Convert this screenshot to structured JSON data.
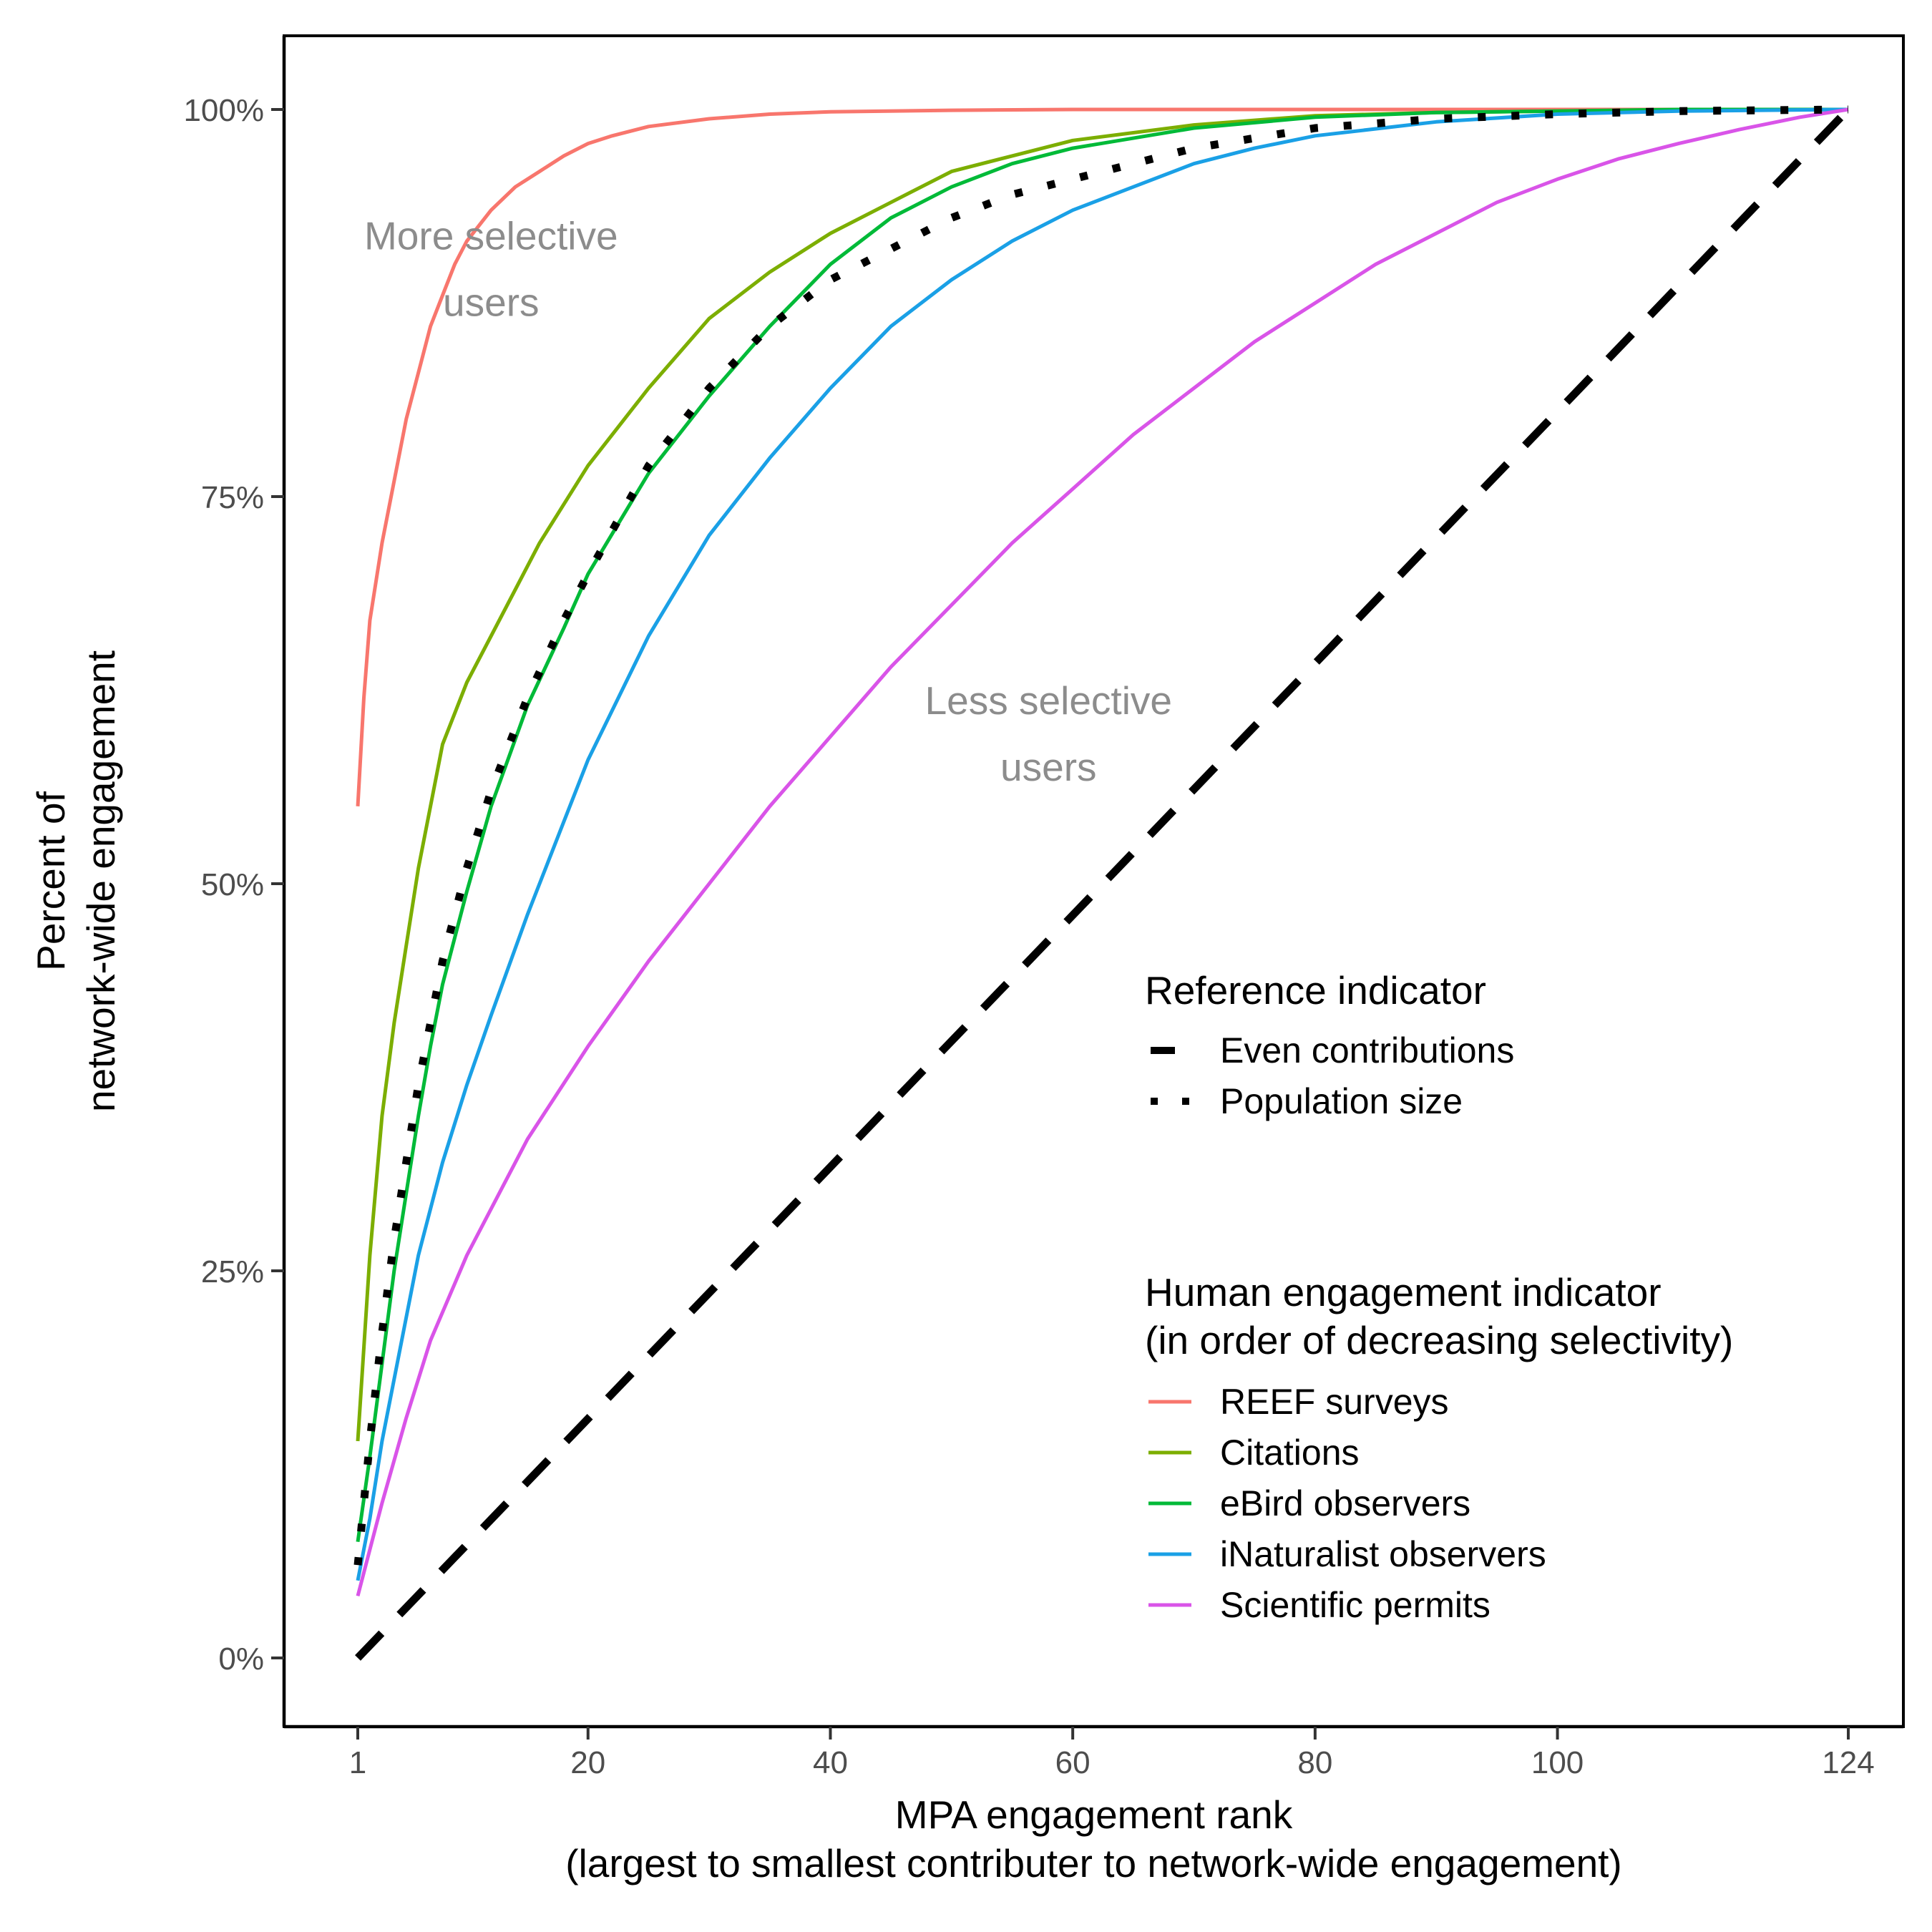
{
  "chart_data": {
    "type": "line",
    "xlabel": [
      "MPA engagement rank",
      "(largest to smallest contributer to network-wide engagement)"
    ],
    "ylabel": [
      "Percent of",
      "network-wide engagement"
    ],
    "xlim": [
      -9,
      133
    ],
    "ylim": [
      -4,
      105
    ],
    "x_ticks": [
      1,
      20,
      40,
      60,
      80,
      100,
      124
    ],
    "y_ticks": [
      0,
      25,
      50,
      75,
      100
    ],
    "y_tick_labels": [
      "0%",
      "25%",
      "50%",
      "75%",
      "100%"
    ],
    "grid": false,
    "legend_position": "bottom-right",
    "annotations": [
      {
        "lines": [
          "More selective",
          "users"
        ],
        "x": 12,
        "y": 90.5
      },
      {
        "lines": [
          "Less selective",
          "users"
        ],
        "x": 58,
        "y": 60.5
      }
    ],
    "legends": [
      {
        "title": [
          "Reference indicator"
        ],
        "entries": [
          "Even contributions",
          "Population size"
        ]
      },
      {
        "title": [
          "Human engagement indicator",
          "(in order of decreasing selectivity)"
        ],
        "entries": [
          "REEF surveys",
          "Citations",
          "eBird observers",
          "iNaturalist observers",
          "Scientific permits"
        ]
      }
    ],
    "series": [
      {
        "name": "Even contributions",
        "style": "dashed",
        "color": "#000000",
        "x": [
          1,
          124
        ],
        "y": [
          0,
          100
        ]
      },
      {
        "name": "Population size",
        "style": "dotted",
        "color": "#000000",
        "x": [
          1,
          2,
          3,
          4,
          5,
          6,
          7,
          8,
          10,
          12,
          15,
          18,
          20,
          25,
          30,
          35,
          40,
          45,
          50,
          55,
          60,
          70,
          80,
          90,
          100,
          110,
          124
        ],
        "y": [
          6,
          14,
          21,
          27,
          32,
          37,
          41,
          45,
          51,
          56,
          62,
          67,
          70,
          77,
          82,
          86,
          89,
          91,
          93,
          94.5,
          95.5,
          97.5,
          98.8,
          99.4,
          99.7,
          99.9,
          100
        ]
      },
      {
        "name": "REEF surveys",
        "style": "solid",
        "color": "#F8766D",
        "x": [
          1,
          1.5,
          2,
          3,
          4,
          5,
          6,
          7,
          8,
          9,
          10,
          12,
          14,
          16,
          18,
          20,
          22,
          25,
          30,
          35,
          40,
          50,
          60,
          80,
          100,
          124
        ],
        "y": [
          55,
          62,
          67,
          72,
          76,
          80,
          83,
          86,
          88,
          90,
          91.5,
          93.5,
          95,
          96,
          97,
          97.8,
          98.3,
          98.9,
          99.4,
          99.7,
          99.85,
          99.95,
          100,
          100,
          100,
          100
        ]
      },
      {
        "name": "Citations",
        "style": "solid",
        "color": "#7CAE00",
        "x": [
          1,
          2,
          3,
          4,
          5,
          6,
          7,
          8,
          10,
          12,
          14,
          16,
          18,
          20,
          25,
          30,
          35,
          40,
          45,
          50,
          55,
          60,
          70,
          80,
          90,
          100,
          124
        ],
        "y": [
          14,
          26,
          35,
          41,
          46,
          51,
          55,
          59,
          63,
          66,
          69,
          72,
          74.5,
          77,
          82,
          86.5,
          89.5,
          92,
          94,
          96,
          97,
          98,
          99,
          99.6,
          99.8,
          99.9,
          100
        ]
      },
      {
        "name": "eBird observers",
        "style": "solid",
        "color": "#00BA38",
        "x": [
          1,
          2,
          3,
          4,
          5,
          6,
          7,
          8,
          10,
          12,
          15,
          18,
          20,
          25,
          30,
          35,
          40,
          45,
          50,
          55,
          60,
          70,
          80,
          90,
          100,
          110,
          124
        ],
        "y": [
          7.5,
          13,
          19,
          25,
          30,
          35,
          39.5,
          43.5,
          49.5,
          55,
          61.5,
          66.5,
          70,
          76.5,
          81.5,
          86,
          90,
          93,
          95,
          96.5,
          97.5,
          98.8,
          99.5,
          99.8,
          99.9,
          100,
          100
        ]
      },
      {
        "name": "iNaturalist observers",
        "style": "solid",
        "color": "#1AA0E6",
        "x": [
          1,
          2,
          3,
          4,
          6,
          8,
          10,
          12,
          15,
          18,
          20,
          25,
          30,
          35,
          40,
          45,
          50,
          55,
          60,
          65,
          70,
          75,
          80,
          90,
          100,
          110,
          124
        ],
        "y": [
          5,
          9,
          14,
          18,
          26,
          32,
          37,
          41.5,
          48,
          54,
          58,
          66,
          72.5,
          77.5,
          82,
          86,
          89,
          91.5,
          93.5,
          95,
          96.5,
          97.5,
          98.3,
          99.2,
          99.7,
          99.9,
          100
        ]
      },
      {
        "name": "Scientific permits",
        "style": "solid",
        "color": "#D954E8",
        "x": [
          1,
          2,
          3,
          5,
          7,
          10,
          15,
          20,
          25,
          30,
          35,
          40,
          45,
          50,
          55,
          60,
          65,
          70,
          75,
          80,
          85,
          90,
          95,
          100,
          105,
          110,
          115,
          120,
          124
        ],
        "y": [
          4,
          7,
          10,
          15.5,
          20.5,
          26,
          33.5,
          39.5,
          45,
          50,
          55,
          59.5,
          64,
          68,
          72,
          75.5,
          79,
          82,
          85,
          87.5,
          90,
          92,
          94,
          95.5,
          96.8,
          97.8,
          98.7,
          99.5,
          100
        ]
      }
    ]
  }
}
